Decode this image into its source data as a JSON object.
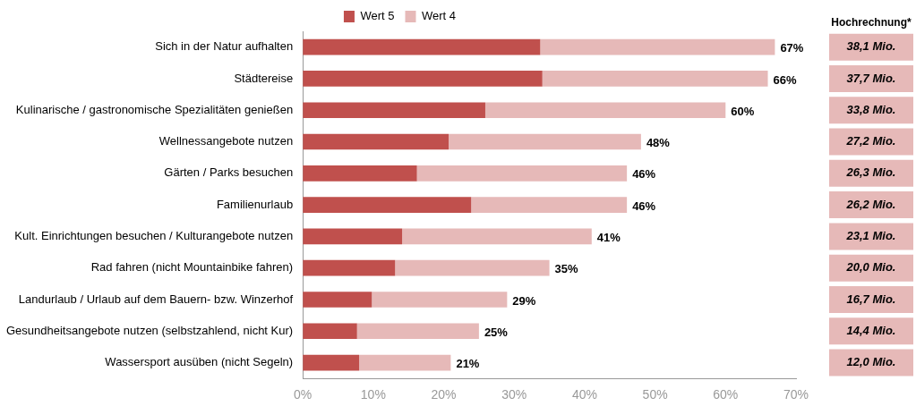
{
  "chart_data": {
    "type": "bar",
    "orientation": "horizontal",
    "stacked": true,
    "categories": [
      "Sich in der Natur aufhalten",
      "Städtereise",
      "Kulinarische / gastronomische Spezialitäten genießen",
      "Wellnessangebote nutzen",
      "Gärten / Parks besuchen",
      "Familienurlaub",
      "Kult. Einrichtungen besuchen / Kulturangebote nutzen",
      "Rad fahren (nicht Mountainbike fahren)",
      "Landurlaub / Urlaub auf dem Bauern- bzw. Winzerhof",
      "Gesundheitsangebote nutzen (selbstzahlend, nicht Kur)",
      "Wassersport ausüben (nicht Segeln)"
    ],
    "series": [
      {
        "name": "Wert 5",
        "color": "#c0504d",
        "values": [
          33.7,
          34.0,
          25.9,
          20.7,
          16.2,
          23.9,
          14.1,
          13.1,
          9.8,
          7.7,
          8.0
        ]
      },
      {
        "name": "Wert 4",
        "color": "#e6b9b8",
        "values": [
          33.3,
          32.0,
          34.1,
          27.3,
          29.8,
          22.1,
          26.9,
          21.9,
          19.2,
          17.3,
          13.0
        ]
      }
    ],
    "totals": [
      "67%",
      "66%",
      "60%",
      "48%",
      "46%",
      "46%",
      "41%",
      "35%",
      "29%",
      "25%",
      "21%"
    ],
    "xlim": [
      0,
      70
    ],
    "xticks": [
      {
        "value": 0,
        "label": "0%"
      },
      {
        "value": 10,
        "label": "10%"
      },
      {
        "value": 20,
        "label": "20%"
      },
      {
        "value": 30,
        "label": "30%"
      },
      {
        "value": 40,
        "label": "40%"
      },
      {
        "value": 50,
        "label": "50%"
      },
      {
        "value": 60,
        "label": "60%"
      },
      {
        "value": 70,
        "label": "70%"
      }
    ],
    "legend": "top",
    "grid": false,
    "annotations": [
      "Hochrechnung*",
      "38,1 Mio.",
      "37,7 Mio.",
      "33,8 Mio.",
      "27,2 Mio.",
      "26,3 Mio.",
      "26,2 Mio.",
      "23,1 Mio.",
      "20,0 Mio.",
      "16,7 Mio.",
      "14,4 Mio.",
      "12,0 Mio."
    ]
  }
}
